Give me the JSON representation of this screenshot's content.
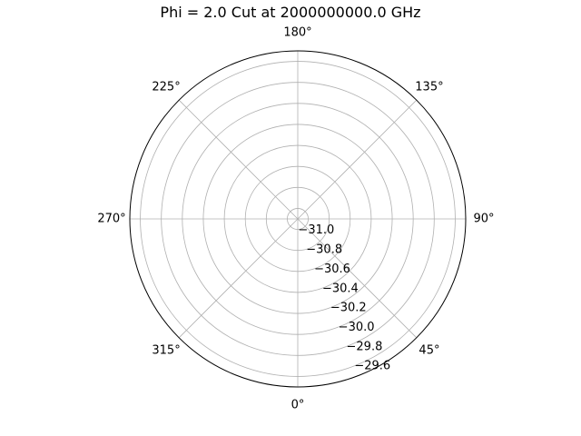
{
  "chart_data": {
    "type": "polar-line",
    "title": "Phi = 2.0 Cut at 2000000000.0 GHz",
    "theta_tick_labels": [
      "0°",
      "45°",
      "90°",
      "135°",
      "180°",
      "225°",
      "270°",
      "315°"
    ],
    "theta_ticks_deg": [
      0,
      45,
      90,
      135,
      180,
      225,
      270,
      315
    ],
    "theta_zero_location": "bottom",
    "theta_direction": "counterclockwise",
    "r_tick_labels": [
      "−31.0",
      "−30.8",
      "−30.6",
      "−30.4",
      "−30.2",
      "−30.0",
      "−29.8",
      "−29.6"
    ],
    "r_ticks": [
      -31.0,
      -30.8,
      -30.6,
      -30.4,
      -30.2,
      -30.0,
      -29.8,
      -29.6
    ],
    "rlim": [
      -31.1,
      -29.5
    ],
    "r_label_angle_deg": 22.5,
    "grid": true,
    "series": [
      {
        "x": [],
        "values": []
      }
    ]
  }
}
